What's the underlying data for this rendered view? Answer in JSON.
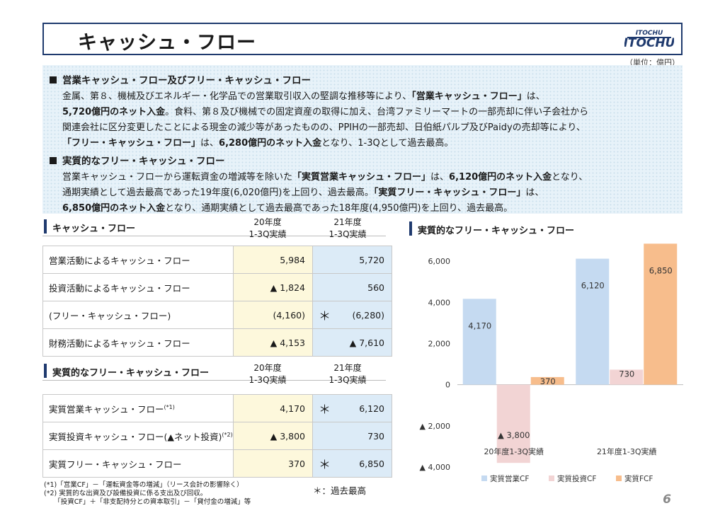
{
  "header": {
    "title": "キャッシュ・フロー",
    "logo_top": "ITOCHU",
    "logo_main": "ITOCHU",
    "unit": "（単位：億円）"
  },
  "summary": {
    "h1": "営業キャッシュ・フロー及びフリー・キャッシュ・フロー",
    "p1": [
      [
        "金属、第８、機械及びエネルギー・化学品での営業取引収入の堅調な推移等により、",
        "「営業キャッシュ・フロー」",
        "は、"
      ],
      [
        "5,720億円のネット入金",
        "。食料、第８及び機械での固定資産の取得に加え、台湾ファミリーマートの一部売却に伴い子会社から"
      ],
      [
        "関連会社に区分変更したことによる現金の減少等があったものの、PPIHの一部売却、日伯紙パルプ及びPaidyの売却等により、"
      ],
      [
        "「フリー・キャッシュ・フロー」",
        "は、",
        "6,280億円のネット入金",
        "となり、1-3Qとして過去最高。"
      ]
    ],
    "h2": "実質的なフリー・キャッシュ・フロー",
    "p2": [
      [
        "営業キャッシュ・フローから運転資金の増減等を除いた",
        "「実質営業キャッシュ・フロー」",
        "は、",
        "6,120億円のネット入金",
        "となり、"
      ],
      [
        "通期実績として過去最高であった19年度(6,020億円)を上回り、過去最高。",
        "「実質フリー・キャッシュ・フロー」",
        "は、"
      ],
      [
        "6,850億円のネット入金",
        "となり、通期実績として過去最高であった18年度(4,950億円)を上回り、過去最高。"
      ]
    ]
  },
  "table1": {
    "title": "キャッシュ・フロー",
    "col20": [
      "20年度",
      "1-3Q実績"
    ],
    "col21": [
      "21年度",
      "1-3Q実績"
    ],
    "rows": [
      {
        "label": "営業活動によるキャッシュ・フロー",
        "v20": "5,984",
        "v21": "5,720",
        "star": ""
      },
      {
        "label": "投資活動によるキャッシュ・フロー",
        "v20": "▲ 1,824",
        "v21": "560",
        "star": ""
      },
      {
        "label": "(フリー・キャッシュ・フロー)",
        "v20": "(4,160)",
        "v21": "(6,280)",
        "star": "＊"
      },
      {
        "label": "財務活動によるキャッシュ・フロー",
        "v20": "▲ 4,153",
        "v21": "▲ 7,610",
        "star": ""
      }
    ]
  },
  "table2": {
    "title": "実質的なフリー・キャッシュ・フロー",
    "col20": [
      "20年度",
      "1-3Q実績"
    ],
    "col21": [
      "21年度",
      "1-3Q実績"
    ],
    "rows": [
      {
        "label": "実質営業キャッシュ・フロー",
        "sup": "(*1)",
        "v20": "4,170",
        "v21": "6,120",
        "star": "＊"
      },
      {
        "label": "実質投資キャッシュ・フロー(▲ネット投資)",
        "sup": "(*2)",
        "v20": "▲ 3,800",
        "v21": "730",
        "star": ""
      },
      {
        "label": "実質フリー・キャッシュ・フロー",
        "sup": "",
        "v20": "370",
        "v21": "6,850",
        "star": "＊"
      }
    ]
  },
  "footnotes": [
    "(*1)「営業CF」－「運転資金等の増減」（リース会計の影響除く）",
    "(*2) 実質的な出資及び設備投資に係る支出及び回収。",
    "　　「投資CF」＋「非支配持分との資本取引」－「貸付金の増減」等"
  ],
  "star_legend": "＊：過去最高",
  "page_number": "6",
  "colors": {
    "navy": "#1f3a6e",
    "op": "#c5daf1",
    "inv": "#f2d4d4",
    "fcf": "#f7bd8c"
  },
  "chart_data": {
    "type": "bar",
    "title": "実質的なフリー・キャッシュ・フロー",
    "categories": [
      "20年度1-3Q実績",
      "21年度1-3Q実績"
    ],
    "series": [
      {
        "name": "実質営業CF",
        "values": [
          4170,
          6120
        ],
        "labels": [
          "4,170",
          "6,120"
        ],
        "color": "#c5daf1"
      },
      {
        "name": "実質投資CF",
        "values": [
          -3800,
          730
        ],
        "labels": [
          "▲ 3,800",
          "730"
        ],
        "color": "#f2d4d4"
      },
      {
        "name": "実質FCF",
        "values": [
          370,
          6850
        ],
        "labels": [
          "370",
          "6,850"
        ],
        "color": "#f7bd8c"
      }
    ],
    "yticks": [
      6000,
      4000,
      2000,
      0,
      -2000,
      -4000
    ],
    "ytick_labels": [
      "6,000",
      "4,000",
      "2,000",
      "0",
      "▲ 2,000",
      "▲ 4,000"
    ],
    "ylim": [
      -4000,
      7000
    ],
    "legend": "bottom"
  }
}
